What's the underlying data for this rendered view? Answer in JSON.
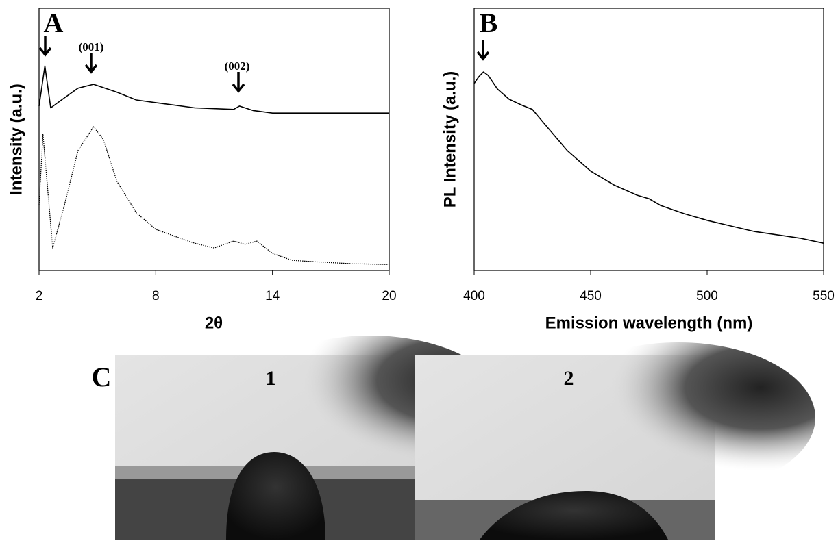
{
  "chart_data": [
    {
      "type": "line",
      "x_label": "2θ",
      "y_label": "Intensity (a.u.)",
      "annotations": [
        "A",
        "(001)",
        "(002)"
      ],
      "xlim": [
        2,
        20
      ],
      "xticks": [
        2,
        8,
        14,
        20
      ],
      "ylim": [
        0,
        100
      ],
      "series": [
        {
          "color": "#000000",
          "style": "solid",
          "x": [
            2.0,
            2.3,
            2.6,
            3.3,
            4.0,
            4.8,
            6.0,
            7.0,
            8.0,
            10.0,
            12.0,
            12.3,
            13.0,
            14.0,
            16.0,
            18.0,
            20.0
          ],
          "values": [
            62.7,
            78,
            62,
            65.8,
            69.5,
            71,
            68,
            65,
            64,
            62,
            61.4,
            62.7,
            61,
            60,
            60,
            60,
            60
          ]
        },
        {
          "color": "#000000",
          "style": "dotted",
          "x": [
            2.0,
            2.2,
            2.7,
            3.3,
            4.0,
            4.8,
            5.3,
            6.0,
            7.0,
            8.0,
            9.0,
            10.0,
            11.0,
            12.0,
            12.6,
            13.2,
            14.0,
            15.0,
            16.0,
            18.0,
            20.0
          ],
          "values": [
            25,
            52,
            8.6,
            24.8,
            45.7,
            54.8,
            50,
            34,
            22,
            15.7,
            13,
            10.4,
            8.6,
            11.2,
            10,
            11.2,
            6.5,
            3.9,
            3.4,
            2.6,
            2.3
          ]
        }
      ]
    },
    {
      "type": "line",
      "x_label": "Emission wavelength (nm)",
      "y_label": "PL Intensity (a.u.)",
      "annotations": [
        "B"
      ],
      "xlim": [
        400,
        550
      ],
      "xticks": [
        400,
        450,
        500,
        550
      ],
      "ylim": [
        0,
        100
      ],
      "series": [
        {
          "color": "#000000",
          "style": "solid",
          "x": [
            400,
            402,
            404,
            406,
            410,
            415,
            420,
            425,
            430,
            440,
            450,
            460,
            470,
            475,
            480,
            490,
            500,
            510,
            520,
            530,
            540,
            550
          ],
          "values": [
            71.3,
            73.9,
            75.7,
            74.4,
            69.2,
            65.3,
            63.2,
            61.4,
            56.1,
            45.7,
            37.9,
            32.6,
            28.7,
            27.4,
            24.8,
            21.7,
            19.1,
            17,
            14.9,
            13.6,
            12.3,
            10.4
          ]
        }
      ]
    }
  ],
  "panel_c": {
    "label": "C",
    "images": [
      {
        "label": "1"
      },
      {
        "label": "2"
      }
    ]
  }
}
